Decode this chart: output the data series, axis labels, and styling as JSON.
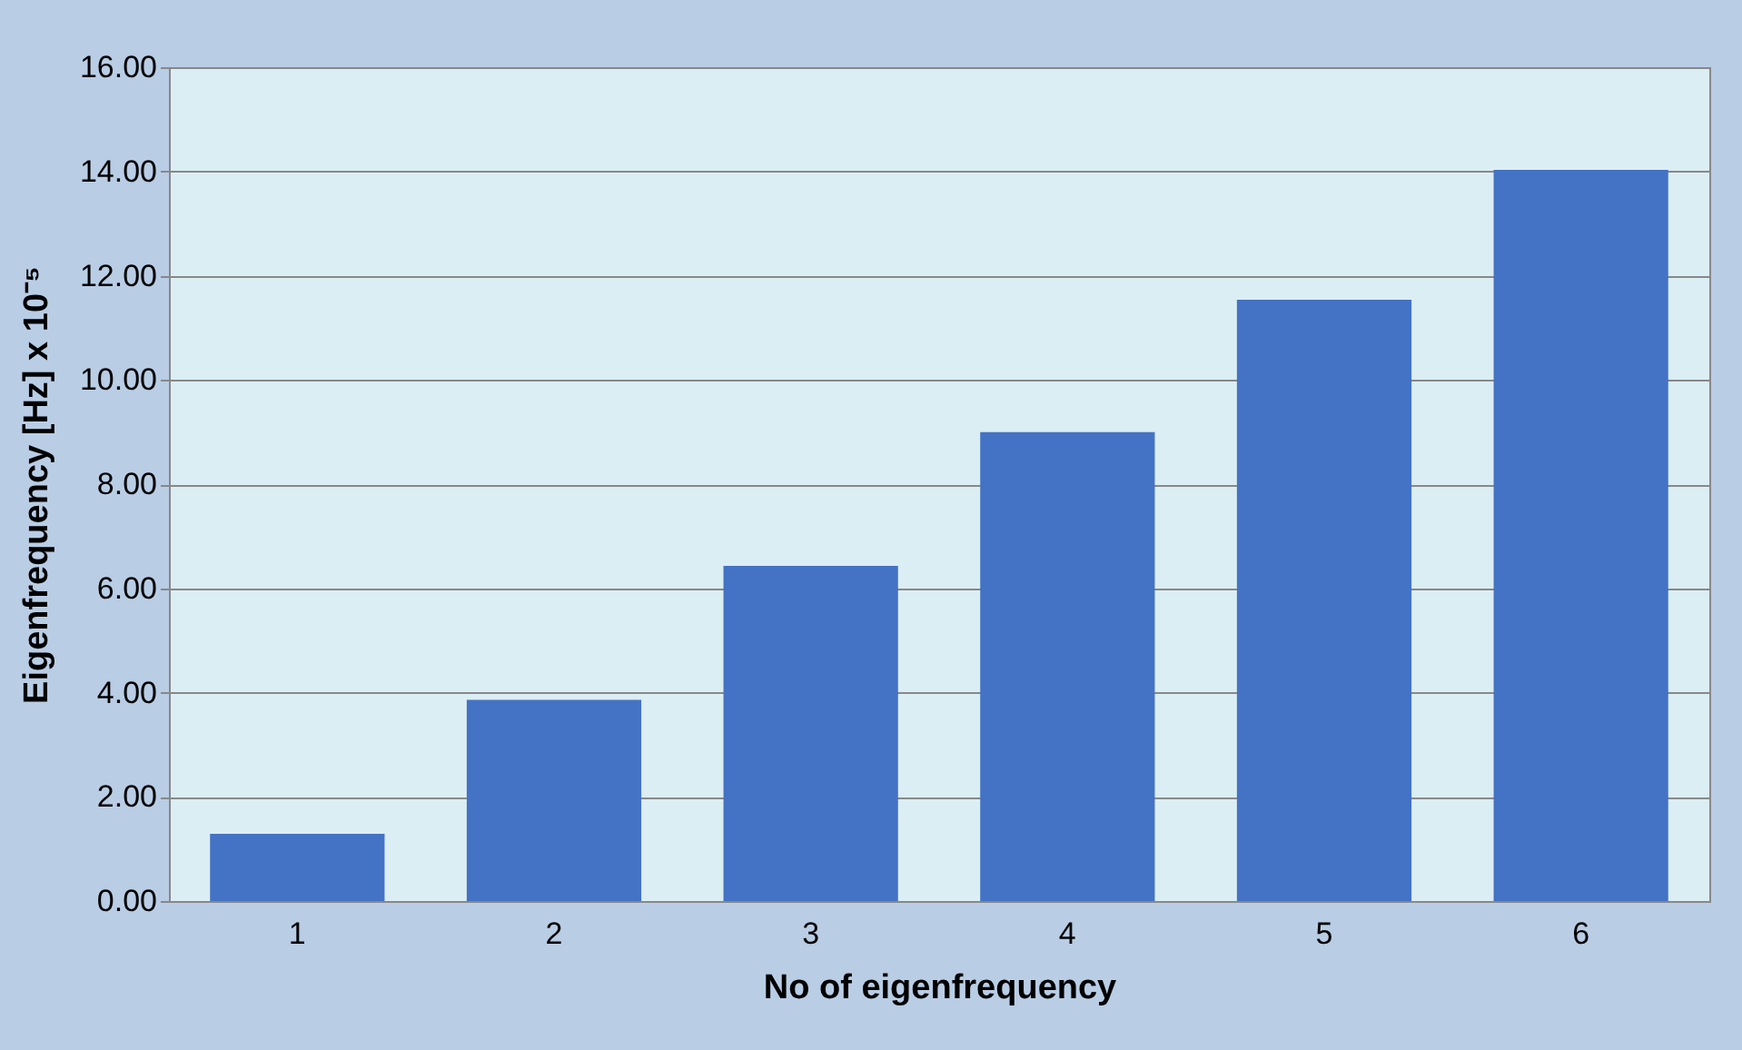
{
  "chart_data": {
    "type": "bar",
    "xlabel": "No of eigenfrequency",
    "ylabel": "Eigenfrequency [Hz] x 10⁻⁵",
    "categories": [
      "1",
      "2",
      "3",
      "4",
      "5",
      "6"
    ],
    "values": [
      1.29,
      3.86,
      6.43,
      9.0,
      11.54,
      14.03
    ],
    "color": "#4472c4",
    "ylim": [
      0,
      16
    ],
    "yticks": [
      {
        "value": 0,
        "label": "0.00"
      },
      {
        "value": 2,
        "label": "2.00"
      },
      {
        "value": 4,
        "label": "4.00"
      },
      {
        "value": 6,
        "label": "6.00"
      },
      {
        "value": 8,
        "label": "8.00"
      },
      {
        "value": 10,
        "label": "10.00"
      },
      {
        "value": 12,
        "label": "12.00"
      },
      {
        "value": 14,
        "label": "14.00"
      },
      {
        "value": 16,
        "label": "16.00"
      }
    ],
    "grid": "y"
  }
}
